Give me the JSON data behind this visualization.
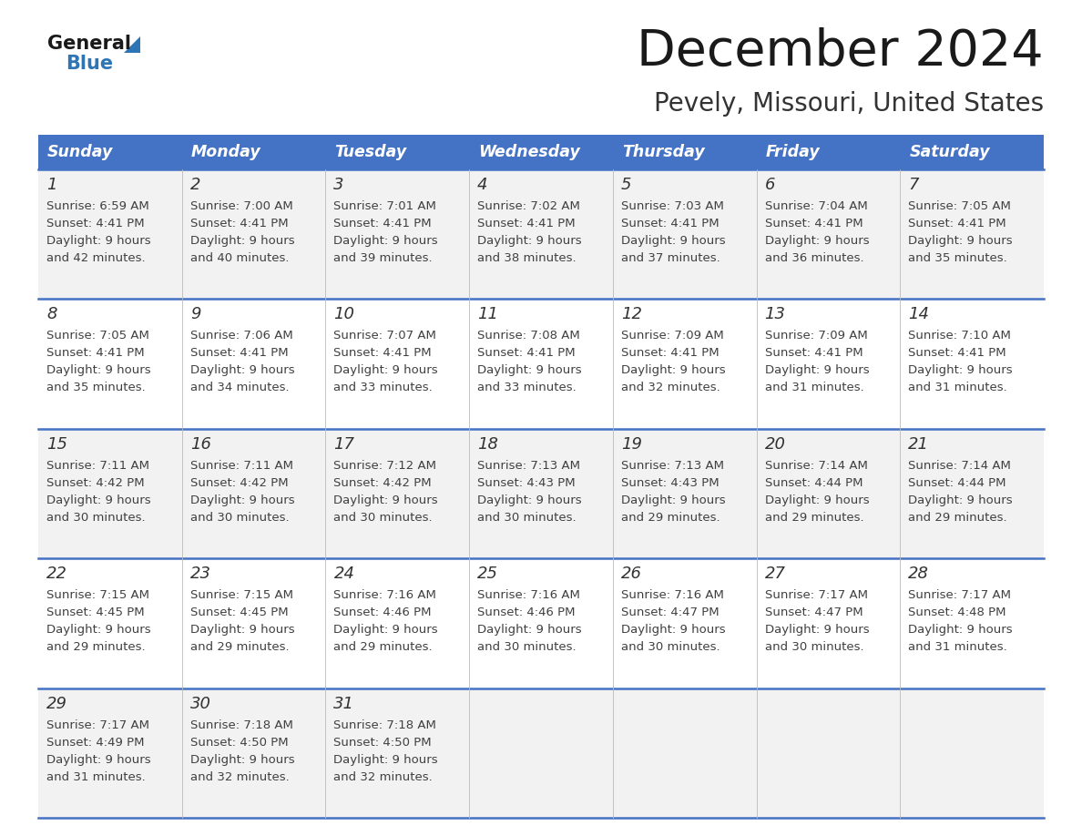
{
  "title": "December 2024",
  "subtitle": "Pevely, Missouri, United States",
  "days_of_week": [
    "Sunday",
    "Monday",
    "Tuesday",
    "Wednesday",
    "Thursday",
    "Friday",
    "Saturday"
  ],
  "header_bg": "#4472C4",
  "header_text": "#FFFFFF",
  "row_bg_odd": "#F2F2F2",
  "row_bg_even": "#FFFFFF",
  "cell_text_color": "#404040",
  "day_num_color": "#333333",
  "border_color": "#4472C4",
  "title_color": "#1a1a1a",
  "subtitle_color": "#333333",
  "logo_general_color": "#1a1a1a",
  "logo_blue_color": "#2E75B6",
  "calendar_data": [
    [
      {
        "day": 1,
        "sunrise": "6:59 AM",
        "sunset": "4:41 PM",
        "daylight": "9 hours and 42 minutes."
      },
      {
        "day": 2,
        "sunrise": "7:00 AM",
        "sunset": "4:41 PM",
        "daylight": "9 hours and 40 minutes."
      },
      {
        "day": 3,
        "sunrise": "7:01 AM",
        "sunset": "4:41 PM",
        "daylight": "9 hours and 39 minutes."
      },
      {
        "day": 4,
        "sunrise": "7:02 AM",
        "sunset": "4:41 PM",
        "daylight": "9 hours and 38 minutes."
      },
      {
        "day": 5,
        "sunrise": "7:03 AM",
        "sunset": "4:41 PM",
        "daylight": "9 hours and 37 minutes."
      },
      {
        "day": 6,
        "sunrise": "7:04 AM",
        "sunset": "4:41 PM",
        "daylight": "9 hours and 36 minutes."
      },
      {
        "day": 7,
        "sunrise": "7:05 AM",
        "sunset": "4:41 PM",
        "daylight": "9 hours and 35 minutes."
      }
    ],
    [
      {
        "day": 8,
        "sunrise": "7:05 AM",
        "sunset": "4:41 PM",
        "daylight": "9 hours and 35 minutes."
      },
      {
        "day": 9,
        "sunrise": "7:06 AM",
        "sunset": "4:41 PM",
        "daylight": "9 hours and 34 minutes."
      },
      {
        "day": 10,
        "sunrise": "7:07 AM",
        "sunset": "4:41 PM",
        "daylight": "9 hours and 33 minutes."
      },
      {
        "day": 11,
        "sunrise": "7:08 AM",
        "sunset": "4:41 PM",
        "daylight": "9 hours and 33 minutes."
      },
      {
        "day": 12,
        "sunrise": "7:09 AM",
        "sunset": "4:41 PM",
        "daylight": "9 hours and 32 minutes."
      },
      {
        "day": 13,
        "sunrise": "7:09 AM",
        "sunset": "4:41 PM",
        "daylight": "9 hours and 31 minutes."
      },
      {
        "day": 14,
        "sunrise": "7:10 AM",
        "sunset": "4:41 PM",
        "daylight": "9 hours and 31 minutes."
      }
    ],
    [
      {
        "day": 15,
        "sunrise": "7:11 AM",
        "sunset": "4:42 PM",
        "daylight": "9 hours and 30 minutes."
      },
      {
        "day": 16,
        "sunrise": "7:11 AM",
        "sunset": "4:42 PM",
        "daylight": "9 hours and 30 minutes."
      },
      {
        "day": 17,
        "sunrise": "7:12 AM",
        "sunset": "4:42 PM",
        "daylight": "9 hours and 30 minutes."
      },
      {
        "day": 18,
        "sunrise": "7:13 AM",
        "sunset": "4:43 PM",
        "daylight": "9 hours and 30 minutes."
      },
      {
        "day": 19,
        "sunrise": "7:13 AM",
        "sunset": "4:43 PM",
        "daylight": "9 hours and 29 minutes."
      },
      {
        "day": 20,
        "sunrise": "7:14 AM",
        "sunset": "4:44 PM",
        "daylight": "9 hours and 29 minutes."
      },
      {
        "day": 21,
        "sunrise": "7:14 AM",
        "sunset": "4:44 PM",
        "daylight": "9 hours and 29 minutes."
      }
    ],
    [
      {
        "day": 22,
        "sunrise": "7:15 AM",
        "sunset": "4:45 PM",
        "daylight": "9 hours and 29 minutes."
      },
      {
        "day": 23,
        "sunrise": "7:15 AM",
        "sunset": "4:45 PM",
        "daylight": "9 hours and 29 minutes."
      },
      {
        "day": 24,
        "sunrise": "7:16 AM",
        "sunset": "4:46 PM",
        "daylight": "9 hours and 29 minutes."
      },
      {
        "day": 25,
        "sunrise": "7:16 AM",
        "sunset": "4:46 PM",
        "daylight": "9 hours and 30 minutes."
      },
      {
        "day": 26,
        "sunrise": "7:16 AM",
        "sunset": "4:47 PM",
        "daylight": "9 hours and 30 minutes."
      },
      {
        "day": 27,
        "sunrise": "7:17 AM",
        "sunset": "4:47 PM",
        "daylight": "9 hours and 30 minutes."
      },
      {
        "day": 28,
        "sunrise": "7:17 AM",
        "sunset": "4:48 PM",
        "daylight": "9 hours and 31 minutes."
      }
    ],
    [
      {
        "day": 29,
        "sunrise": "7:17 AM",
        "sunset": "4:49 PM",
        "daylight": "9 hours and 31 minutes."
      },
      {
        "day": 30,
        "sunrise": "7:18 AM",
        "sunset": "4:50 PM",
        "daylight": "9 hours and 32 minutes."
      },
      {
        "day": 31,
        "sunrise": "7:18 AM",
        "sunset": "4:50 PM",
        "daylight": "9 hours and 32 minutes."
      },
      null,
      null,
      null,
      null
    ]
  ]
}
